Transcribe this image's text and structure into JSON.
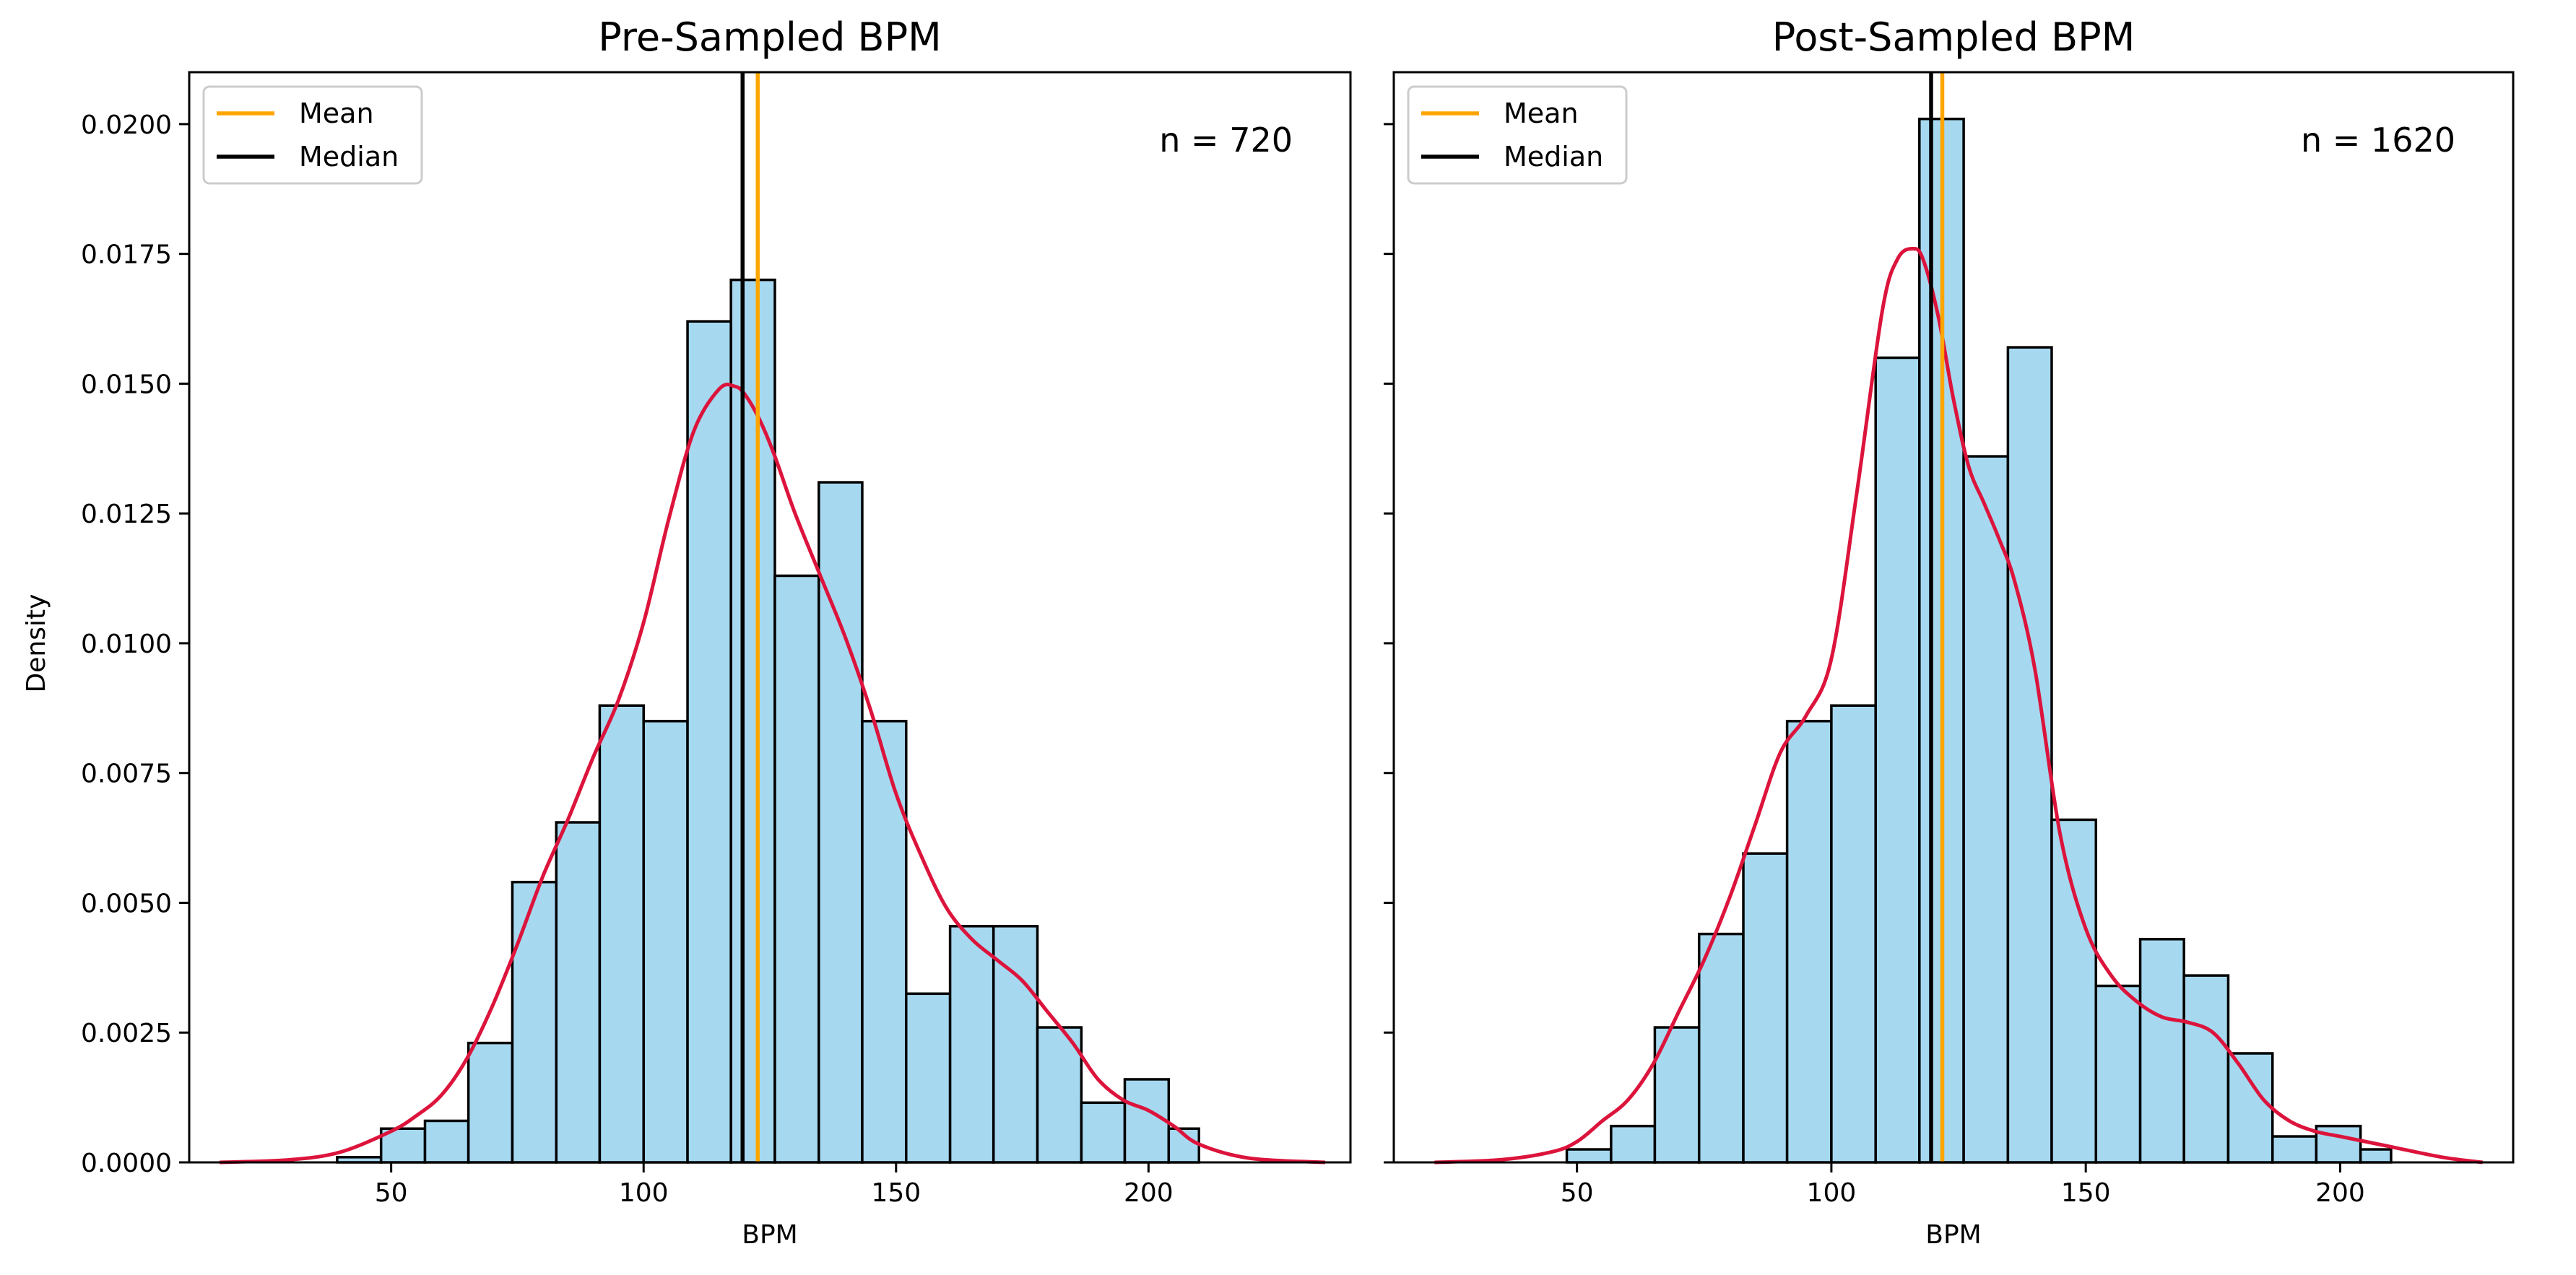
{
  "chart_data": [
    {
      "type": "bar",
      "title": "Pre-Sampled BPM",
      "xlabel": "BPM",
      "ylabel": "Density",
      "xlim": [
        10,
        240
      ],
      "ylim": [
        0,
        0.021
      ],
      "xticks": [
        50,
        100,
        150,
        200
      ],
      "yticks": [
        0,
        0.0025,
        0.005,
        0.0075,
        0.01,
        0.0125,
        0.015,
        0.0175,
        0.02
      ],
      "ytick_labels": [
        "0.0000",
        "0.0025",
        "0.0050",
        "0.0075",
        "0.0100",
        "0.0125",
        "0.0150",
        "0.0175",
        "0.0200"
      ],
      "show_yticklabels": true,
      "legend": {
        "placement": "upper-left",
        "entries": [
          {
            "label": "Mean",
            "color": "#ffa500"
          },
          {
            "label": "Median",
            "color": "#000000"
          }
        ]
      },
      "annotation": "n = 720",
      "mean": 122.6,
      "median": 119.6,
      "bar_color": "#a6d9f0",
      "kde_color": "#dc143c",
      "bins": [
        {
          "x0": 39.3,
          "x1": 48.0,
          "density": 0.0001
        },
        {
          "x0": 48.0,
          "x1": 56.7,
          "density": 0.00065
        },
        {
          "x0": 56.7,
          "x1": 65.3,
          "density": 0.0008
        },
        {
          "x0": 65.3,
          "x1": 74.0,
          "density": 0.0023
        },
        {
          "x0": 74.0,
          "x1": 82.7,
          "density": 0.0054
        },
        {
          "x0": 82.7,
          "x1": 91.3,
          "density": 0.00655
        },
        {
          "x0": 91.3,
          "x1": 100.0,
          "density": 0.0088
        },
        {
          "x0": 100.0,
          "x1": 108.7,
          "density": 0.0085
        },
        {
          "x0": 108.7,
          "x1": 117.3,
          "density": 0.0162
        },
        {
          "x0": 117.3,
          "x1": 126.0,
          "density": 0.017
        },
        {
          "x0": 126.0,
          "x1": 134.7,
          "density": 0.0113
        },
        {
          "x0": 134.7,
          "x1": 143.3,
          "density": 0.0131
        },
        {
          "x0": 143.3,
          "x1": 152.0,
          "density": 0.0085
        },
        {
          "x0": 152.0,
          "x1": 160.7,
          "density": 0.00325
        },
        {
          "x0": 160.7,
          "x1": 169.3,
          "density": 0.00455
        },
        {
          "x0": 169.3,
          "x1": 178.0,
          "density": 0.00455
        },
        {
          "x0": 178.0,
          "x1": 186.7,
          "density": 0.0026
        },
        {
          "x0": 186.7,
          "x1": 195.3,
          "density": 0.00115
        },
        {
          "x0": 195.3,
          "x1": 204.0,
          "density": 0.0016
        },
        {
          "x0": 204.0,
          "x1": 210.0,
          "density": 0.00065
        }
      ],
      "kde": {
        "x": [
          16,
          30,
          40,
          50,
          55,
          60,
          65,
          70,
          75,
          80,
          85,
          90,
          95,
          100,
          105,
          110,
          115,
          118,
          120,
          123,
          126,
          130,
          135,
          140,
          145,
          150,
          155,
          160,
          165,
          170,
          175,
          180,
          185,
          190,
          195,
          200,
          205,
          210,
          220,
          235
        ],
        "y": [
          0,
          5e-05,
          0.0002,
          0.0006,
          0.0009,
          0.0013,
          0.002,
          0.003,
          0.0042,
          0.0055,
          0.0066,
          0.0078,
          0.0089,
          0.0104,
          0.0124,
          0.0141,
          0.0149,
          0.01495,
          0.0148,
          0.0143,
          0.0136,
          0.0125,
          0.0113,
          0.0101,
          0.0087,
          0.0071,
          0.0059,
          0.0049,
          0.0043,
          0.0039,
          0.0035,
          0.0029,
          0.0023,
          0.0016,
          0.0012,
          0.001,
          0.0007,
          0.00035,
          8e-05,
          0
        ]
      }
    },
    {
      "type": "bar",
      "title": "Post-Sampled BPM",
      "xlabel": "BPM",
      "ylabel": "",
      "xlim": [
        14,
        234
      ],
      "ylim": [
        0,
        0.021
      ],
      "xticks": [
        50,
        100,
        150,
        200
      ],
      "yticks": [
        0,
        0.0025,
        0.005,
        0.0075,
        0.01,
        0.0125,
        0.015,
        0.0175,
        0.02
      ],
      "ytick_labels": [],
      "show_yticklabels": false,
      "legend": {
        "placement": "upper-left",
        "entries": [
          {
            "label": "Mean",
            "color": "#ffa500"
          },
          {
            "label": "Median",
            "color": "#000000"
          }
        ]
      },
      "annotation": "n = 1620",
      "mean": 121.8,
      "median": 119.6,
      "bar_color": "#a6d9f0",
      "kde_color": "#dc143c",
      "bins": [
        {
          "x0": 48.0,
          "x1": 56.7,
          "density": 0.00025
        },
        {
          "x0": 56.7,
          "x1": 65.3,
          "density": 0.0007
        },
        {
          "x0": 65.3,
          "x1": 74.0,
          "density": 0.0026
        },
        {
          "x0": 74.0,
          "x1": 82.7,
          "density": 0.0044
        },
        {
          "x0": 82.7,
          "x1": 91.3,
          "density": 0.00595
        },
        {
          "x0": 91.3,
          "x1": 100.0,
          "density": 0.0085
        },
        {
          "x0": 100.0,
          "x1": 108.7,
          "density": 0.0088
        },
        {
          "x0": 108.7,
          "x1": 117.3,
          "density": 0.0155
        },
        {
          "x0": 117.3,
          "x1": 126.0,
          "density": 0.0201
        },
        {
          "x0": 126.0,
          "x1": 134.7,
          "density": 0.0136
        },
        {
          "x0": 134.7,
          "x1": 143.3,
          "density": 0.0157
        },
        {
          "x0": 143.3,
          "x1": 152.0,
          "density": 0.0066
        },
        {
          "x0": 152.0,
          "x1": 160.7,
          "density": 0.0034
        },
        {
          "x0": 160.7,
          "x1": 169.3,
          "density": 0.0043
        },
        {
          "x0": 169.3,
          "x1": 178.0,
          "density": 0.0036
        },
        {
          "x0": 178.0,
          "x1": 186.7,
          "density": 0.0021
        },
        {
          "x0": 186.7,
          "x1": 195.3,
          "density": 0.0005
        },
        {
          "x0": 195.3,
          "x1": 204.0,
          "density": 0.0007
        },
        {
          "x0": 204.0,
          "x1": 210.0,
          "density": 0.00025
        }
      ],
      "kde": {
        "x": [
          22,
          35,
          45,
          50,
          55,
          60,
          65,
          70,
          75,
          80,
          85,
          90,
          95,
          100,
          105,
          110,
          113,
          116,
          118,
          121,
          124,
          127,
          130,
          133,
          136,
          140,
          145,
          150,
          155,
          160,
          165,
          170,
          175,
          180,
          185,
          190,
          195,
          200,
          205,
          210,
          220,
          228
        ],
        "y": [
          0,
          5e-05,
          0.0002,
          0.0004,
          0.0008,
          0.0012,
          0.0019,
          0.0029,
          0.0039,
          0.0051,
          0.0065,
          0.0079,
          0.0086,
          0.0097,
          0.0129,
          0.0164,
          0.0174,
          0.0176,
          0.0174,
          0.0163,
          0.0147,
          0.0134,
          0.0127,
          0.012,
          0.0112,
          0.0095,
          0.0063,
          0.0045,
          0.0036,
          0.0031,
          0.0028,
          0.0027,
          0.0025,
          0.0019,
          0.0012,
          0.0008,
          0.0006,
          0.0005,
          0.0004,
          0.0003,
          0.0001,
          0
        ]
      }
    }
  ]
}
